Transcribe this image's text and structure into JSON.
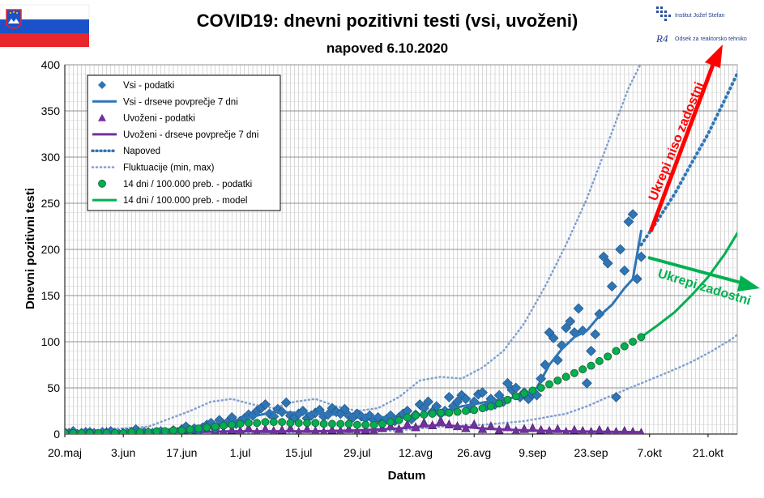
{
  "header": {
    "title": "COVID19: dnevni pozitivni testi (vsi, uvoženi)",
    "subtitle": "napoved 6.10.2020",
    "flag_colors": [
      "#ffffff",
      "#1b52c9",
      "#e8262b"
    ],
    "logo_ijs": "Institut Jožef Stefan",
    "logo_r4": "Odsek za reaktorsko tehniko",
    "logo_r4_mark": "R4"
  },
  "annotations": {
    "red_arrow_label": "Ukrepi niso zadostni",
    "green_arrow_label": "Ukrepi zadostni",
    "red_color": "#ff0000",
    "green_color": "#00b050"
  },
  "chart_data": {
    "type": "scatter",
    "title": "COVID19: dnevni pozitivni testi (vsi, uvoženi)",
    "subtitle": "napoved 6.10.2020",
    "xlabel": "Datum",
    "ylabel": "Dnevni pozitivni testi",
    "x_ticks": [
      "20.maj",
      "3.jun",
      "17.jun",
      "1.jul",
      "15.jul",
      "29.jul",
      "12.avg",
      "26.avg",
      "9.sep",
      "23.sep",
      "7.okt",
      "21.okt"
    ],
    "x_start": "2020-05-20",
    "x_end": "2020-10-28",
    "ylim": [
      0,
      400
    ],
    "y_ticks": [
      0,
      50,
      100,
      150,
      200,
      250,
      300,
      350,
      400
    ],
    "grid": true,
    "legend_position": "top-left",
    "legend": [
      "Vsi - podatki",
      "Vsi - drsече povprečje 7 dni",
      "Uvoženi - podatki",
      "Uvoženi - drsече povprečje 7 dni",
      "Napoved",
      "Fluktuacije (min, max)",
      "14 dni / 100.000 preb. - podatki",
      "14 dni / 100.000 preb. - model"
    ],
    "colors": {
      "vsi": "#2e75b6",
      "vsi_avg": "#2e75b6",
      "uvozeni": "#7030a0",
      "uvozeni_avg": "#7030a0",
      "napoved": "#2e75b6",
      "fluktuacije": "#7f9fcf",
      "incidence_pts": "#00b050",
      "incidence_model": "#00b050"
    },
    "series": [
      {
        "name": "Vsi - podatki",
        "marker": "diamond",
        "x": [
          0,
          1,
          2,
          3,
          4,
          5,
          6,
          7,
          8,
          9,
          10,
          11,
          12,
          13,
          14,
          15,
          16,
          17,
          18,
          19,
          20,
          21,
          22,
          23,
          24,
          25,
          26,
          27,
          28,
          29,
          30,
          31,
          32,
          33,
          34,
          35,
          36,
          37,
          38,
          39,
          40,
          41,
          42,
          43,
          44,
          45,
          46,
          47,
          48,
          49,
          50,
          51,
          52,
          53,
          54,
          55,
          56,
          57,
          58,
          59,
          60,
          61,
          62,
          63,
          64,
          65,
          66,
          67,
          68,
          69,
          70,
          71,
          72,
          73,
          74,
          75,
          76,
          77,
          78,
          79,
          80,
          81,
          82,
          83,
          84,
          85,
          86,
          87,
          88,
          89,
          90,
          91,
          92,
          93,
          94,
          95,
          96,
          97,
          98,
          99,
          100,
          101,
          102,
          103,
          104,
          105,
          106,
          107,
          108,
          109,
          110,
          111,
          112,
          113,
          114,
          115,
          116,
          117,
          118,
          119,
          120,
          121,
          122,
          123,
          124,
          125,
          126,
          127,
          128,
          129,
          130,
          131,
          132,
          133,
          134,
          135,
          136,
          137,
          138
        ],
        "y": [
          2,
          1,
          3,
          0,
          1,
          2,
          2,
          1,
          0,
          2,
          1,
          3,
          1,
          0,
          1,
          1,
          2,
          5,
          1,
          2,
          0,
          1,
          2,
          3,
          2,
          1,
          4,
          2,
          5,
          8,
          3,
          6,
          4,
          7,
          10,
          12,
          6,
          15,
          9,
          13,
          18,
          11,
          14,
          17,
          21,
          20,
          25,
          28,
          32,
          22,
          19,
          27,
          24,
          34,
          20,
          18,
          22,
          25,
          17,
          20,
          23,
          26,
          19,
          21,
          28,
          24,
          22,
          27,
          20,
          18,
          22,
          19,
          17,
          20,
          15,
          18,
          12,
          16,
          20,
          14,
          18,
          22,
          25,
          16,
          21,
          32,
          28,
          35,
          24,
          30,
          22,
          25,
          40,
          30,
          35,
          42,
          38,
          28,
          35,
          43,
          45,
          30,
          38,
          32,
          42,
          35,
          55,
          48,
          50,
          40,
          45,
          38,
          43,
          42,
          60,
          75,
          110,
          104,
          80,
          96,
          115,
          122,
          110,
          136,
          112,
          55,
          90,
          108,
          130,
          192,
          185,
          160,
          40,
          200,
          177,
          230,
          238,
          168,
          192
        ]
      },
      {
        "name": "Vsi - drsече povprečje 7 dni",
        "x": [
          0,
          10,
          20,
          30,
          40,
          50,
          60,
          70,
          80,
          90,
          95,
          100,
          105,
          110,
          113,
          116,
          119,
          122,
          125,
          128,
          131,
          134,
          136,
          138
        ],
        "y": [
          1,
          2,
          2,
          5,
          14,
          24,
          22,
          20,
          17,
          24,
          30,
          34,
          38,
          41,
          50,
          75,
          92,
          105,
          112,
          128,
          140,
          158,
          168,
          220
        ]
      },
      {
        "name": "Uvoženi - podatki",
        "marker": "triangle",
        "x": [
          0,
          2,
          4,
          6,
          8,
          10,
          12,
          14,
          16,
          18,
          20,
          22,
          24,
          26,
          28,
          30,
          32,
          34,
          36,
          38,
          40,
          42,
          44,
          46,
          48,
          50,
          52,
          54,
          56,
          58,
          60,
          62,
          64,
          66,
          68,
          70,
          72,
          74,
          76,
          78,
          80,
          82,
          84,
          86,
          88,
          90,
          92,
          94,
          96,
          98,
          100,
          102,
          104,
          106,
          108,
          110,
          112,
          114,
          116,
          118,
          120,
          122,
          124,
          126,
          128,
          130,
          132,
          134,
          136,
          138
        ],
        "y": [
          0,
          1,
          0,
          1,
          0,
          2,
          1,
          0,
          1,
          0,
          2,
          1,
          2,
          3,
          1,
          4,
          2,
          5,
          3,
          2,
          4,
          3,
          6,
          2,
          5,
          3,
          4,
          6,
          2,
          5,
          3,
          2,
          4,
          3,
          5,
          2,
          4,
          3,
          6,
          8,
          5,
          10,
          7,
          12,
          9,
          14,
          10,
          8,
          6,
          10,
          5,
          8,
          4,
          7,
          3,
          5,
          6,
          4,
          3,
          5,
          2,
          4,
          3,
          2,
          4,
          3,
          2,
          3,
          2,
          1
        ]
      },
      {
        "name": "Uvoženi - drsече povprečje 7 dni",
        "x": [
          0,
          20,
          40,
          60,
          70,
          80,
          85,
          90,
          95,
          100,
          110,
          120,
          138
        ],
        "y": [
          0,
          1,
          3,
          3,
          4,
          6,
          8,
          10,
          8,
          6,
          4,
          3,
          2
        ]
      },
      {
        "name": "Napoved",
        "x": [
          138,
          142,
          146,
          150,
          154,
          158,
          162
        ],
        "y": [
          205,
          232,
          260,
          293,
          325,
          362,
          400
        ]
      },
      {
        "name": "Fluktuacije (min, max)",
        "x": [
          0,
          10,
          20,
          30,
          35,
          40,
          45,
          50,
          55,
          60,
          65,
          70,
          75,
          80,
          85,
          90,
          95,
          100,
          105,
          110,
          115,
          120,
          125,
          130,
          135,
          140
        ],
        "y": [
          2,
          5,
          8,
          25,
          35,
          38,
          32,
          28,
          35,
          38,
          30,
          25,
          28,
          40,
          58,
          62,
          60,
          72,
          90,
          120,
          160,
          205,
          255,
          315,
          375,
          420
        ]
      },
      {
        "name": "Fluktuacije (min, max) lower",
        "x": [
          40,
          50,
          60,
          70,
          80,
          90,
          100,
          105,
          110,
          115,
          120,
          125,
          130,
          138,
          145,
          150,
          155,
          160,
          165
        ],
        "y": [
          2,
          1,
          3,
          2,
          4,
          8,
          10,
          12,
          14,
          18,
          22,
          30,
          40,
          55,
          68,
          78,
          90,
          104,
          122
        ]
      },
      {
        "name": "14 dni / 100.000 preb. - podatki",
        "marker": "circle",
        "x": [
          0,
          2,
          4,
          6,
          8,
          10,
          12,
          14,
          16,
          18,
          20,
          22,
          24,
          26,
          28,
          30,
          32,
          34,
          36,
          38,
          40,
          42,
          44,
          46,
          48,
          50,
          52,
          54,
          56,
          58,
          60,
          62,
          64,
          66,
          68,
          70,
          72,
          74,
          76,
          78,
          80,
          82,
          84,
          86,
          88,
          90,
          92,
          94,
          96,
          98,
          100,
          102,
          104,
          106,
          108,
          110,
          112,
          114,
          116,
          118,
          120,
          122,
          124,
          126,
          128,
          130,
          132,
          134,
          136,
          138
        ],
        "y": [
          1,
          1,
          1,
          1,
          1,
          1,
          1,
          1,
          2,
          2,
          2,
          3,
          3,
          4,
          4,
          5,
          6,
          7,
          8,
          9,
          10,
          11,
          12,
          12,
          13,
          13,
          13,
          12,
          12,
          12,
          12,
          11,
          11,
          11,
          11,
          10,
          10,
          10,
          11,
          13,
          15,
          18,
          20,
          21,
          22,
          23,
          23,
          24,
          25,
          26,
          28,
          30,
          33,
          37,
          41,
          44,
          47,
          50,
          54,
          58,
          62,
          66,
          70,
          74,
          79,
          84,
          90,
          95,
          100,
          105
        ]
      },
      {
        "name": "14 dni / 100.000 preb. - model",
        "x": [
          138,
          142,
          146,
          150,
          154,
          158,
          162,
          166
        ],
        "y": [
          105,
          118,
          132,
          150,
          170,
          195,
          225,
          255
        ]
      }
    ]
  }
}
